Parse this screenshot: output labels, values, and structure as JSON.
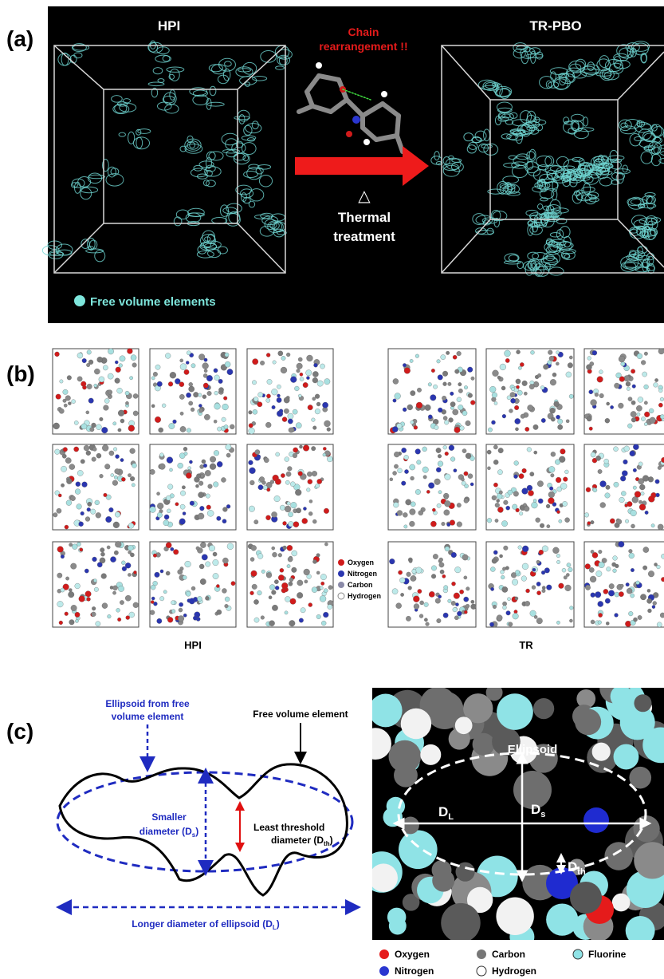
{
  "panel_a": {
    "label": "(a)",
    "left_title": "HPI",
    "right_title": "TR-PBO",
    "reaction_label": [
      "Chain",
      "rearrangement !!"
    ],
    "delta": "△",
    "treatment": [
      "Thermal",
      "treatment"
    ],
    "legend": "Free volume elements"
  },
  "panel_b": {
    "label": "(b)",
    "legend": [
      "Oxygen",
      "Nitrogen",
      "Carbon",
      "Hydrogen"
    ],
    "left_caption": "HPI",
    "right_caption": "TR"
  },
  "panel_c": {
    "label": "(c)",
    "ellipsoid_label": [
      "Ellipsoid from free",
      "volume element"
    ],
    "fve_label": "Free volume element",
    "smaller": {
      "line1": "Smaller",
      "main": "diameter (D",
      "sub": "s",
      "end": ")"
    },
    "threshold": {
      "line1": "Least threshold",
      "main": "diameter (D",
      "sub": "th",
      "end": ")"
    },
    "longer": {
      "main": "Longer diameter of ellipsoid (D",
      "sub": "L",
      "end": ")"
    },
    "image_labels": {
      "ellipsoid": "Ellipsoid",
      "dl": {
        "main": "D",
        "sub": "L"
      },
      "ds": {
        "main": "D",
        "sub": "s"
      },
      "dth": {
        "main": "D",
        "sub": "th"
      }
    },
    "legend": [
      "Oxygen",
      "Carbon",
      "Fluorine",
      "Nitrogen",
      "Hydrogen"
    ]
  }
}
